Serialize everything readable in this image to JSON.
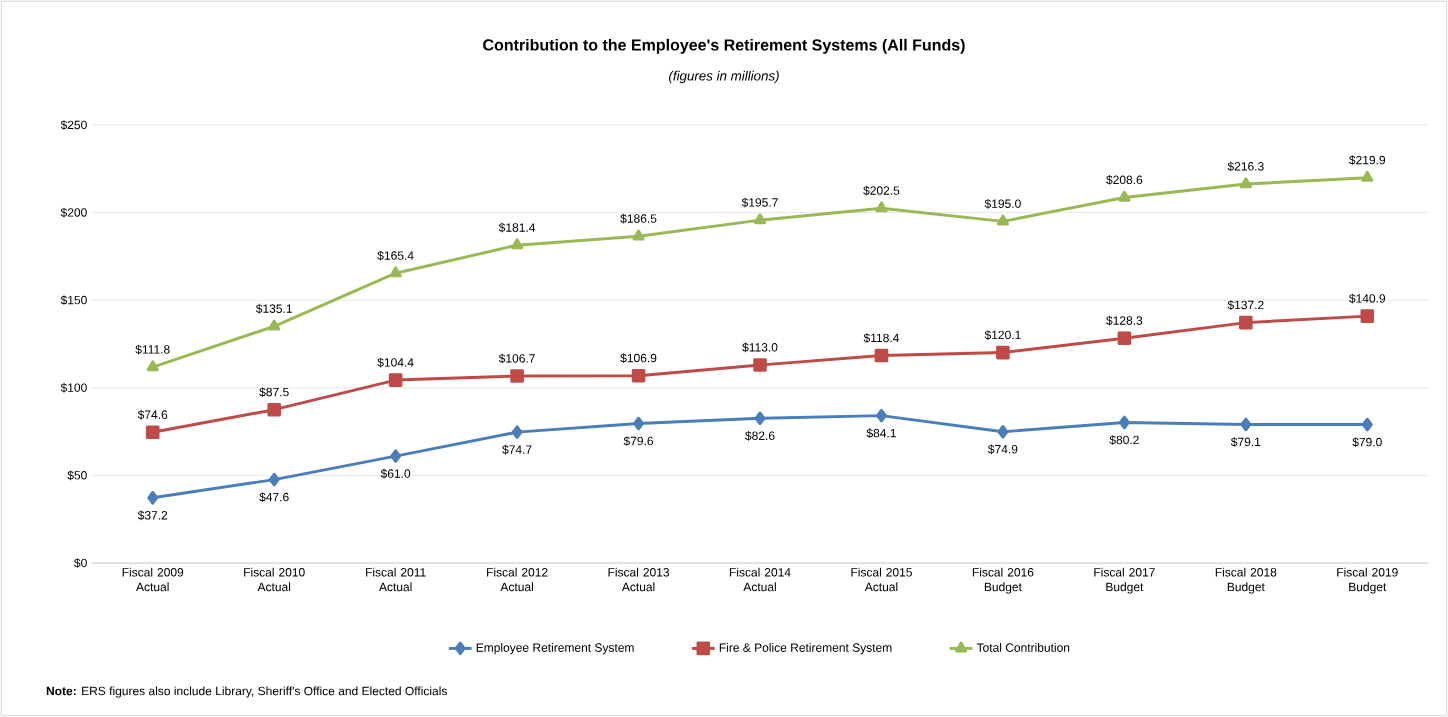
{
  "chart_data": {
    "type": "line",
    "title": "Contribution to the Employee's Retirement Systems (All Funds)",
    "subtitle": "(figures in millions)",
    "categories": [
      "Fiscal 2009 Actual",
      "Fiscal 2010 Actual",
      "Fiscal 2011 Actual",
      "Fiscal 2012 Actual",
      "Fiscal 2013 Actual",
      "Fiscal 2014 Actual",
      "Fiscal 2015 Actual",
      "Fiscal 2016 Budget",
      "Fiscal 2017 Budget",
      "Fiscal 2018 Budget",
      "Fiscal 2019 Budget"
    ],
    "series": [
      {
        "name": "Employee Retirement System",
        "color": "#4a7ebb",
        "marker": "diamond",
        "values": [
          37.2,
          47.6,
          61.0,
          74.7,
          79.6,
          82.6,
          84.1,
          74.9,
          80.2,
          79.1,
          79.0
        ],
        "value_labels": [
          "$37.2",
          "$47.6",
          "$61.0",
          "$74.7",
          "$79.6",
          "$82.6",
          "$84.1",
          "$74.9",
          "$80.2",
          "$79.1",
          "$79.0"
        ]
      },
      {
        "name": "Fire & Police Retirement System",
        "color": "#be4b48",
        "marker": "square",
        "values": [
          74.6,
          87.5,
          104.4,
          106.7,
          106.9,
          113.0,
          118.4,
          120.1,
          128.3,
          137.2,
          140.9
        ],
        "value_labels": [
          "$74.6",
          "$87.5",
          "$104.4",
          "$106.7",
          "$106.9",
          "$113.0",
          "$118.4",
          "$120.1",
          "$128.3",
          "$137.2",
          "$140.9"
        ]
      },
      {
        "name": "Total Contribution",
        "color": "#98b954",
        "marker": "triangle",
        "values": [
          111.8,
          135.1,
          165.4,
          181.4,
          186.5,
          195.7,
          202.5,
          195.0,
          208.6,
          216.3,
          219.9
        ],
        "value_labels": [
          "$111.8",
          "$135.1",
          "$165.4",
          "$181.4",
          "$186.5",
          "$195.7",
          "$202.5",
          "$195.0",
          "$208.6",
          "$216.3",
          "$219.9"
        ]
      }
    ],
    "ylim": [
      0,
      250
    ],
    "yticks": [
      {
        "value": 0,
        "label": "$0"
      },
      {
        "value": 50,
        "label": "$50"
      },
      {
        "value": 100,
        "label": "$100"
      },
      {
        "value": 150,
        "label": "$150"
      },
      {
        "value": 200,
        "label": "$200"
      },
      {
        "value": 250,
        "label": "$250"
      }
    ],
    "grid": "y",
    "legend": "bottom",
    "line_style": "solid",
    "annotations": [
      "**Note:** ERS figures also include Library, Sheriff's Office and Elected Officials"
    ]
  }
}
